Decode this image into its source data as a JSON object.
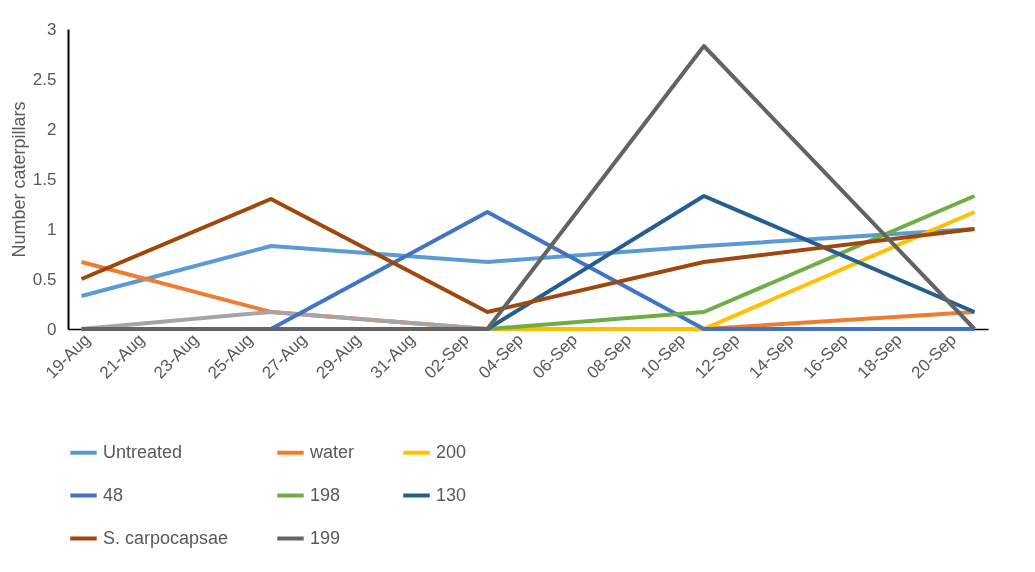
{
  "chart_data": {
    "type": "line",
    "ylabel": "Number caterpillars",
    "ylim": [
      0,
      3
    ],
    "yticks": [
      0,
      0.5,
      1,
      1.5,
      2,
      2.5,
      3
    ],
    "xlim": [
      "--08-18T12:00",
      "--09-21T12:00"
    ],
    "xticks": [
      {
        "value": "--08-19",
        "label": "19-Aug"
      },
      {
        "value": "--08-21",
        "label": "21-Aug"
      },
      {
        "value": "--08-23",
        "label": "23-Aug"
      },
      {
        "value": "--08-25",
        "label": "25-Aug"
      },
      {
        "value": "--08-27",
        "label": "27-Aug"
      },
      {
        "value": "--08-29",
        "label": "29-Aug"
      },
      {
        "value": "--08-31",
        "label": "31-Aug"
      },
      {
        "value": "--09-02",
        "label": "02-Sep"
      },
      {
        "value": "--09-04",
        "label": "04-Sep"
      },
      {
        "value": "--09-06",
        "label": "06-Sep"
      },
      {
        "value": "--09-08",
        "label": "08-Sep"
      },
      {
        "value": "--09-10",
        "label": "10-Sep"
      },
      {
        "value": "--09-12",
        "label": "12-Sep"
      },
      {
        "value": "--09-14",
        "label": "14-Sep"
      },
      {
        "value": "--09-16",
        "label": "16-Sep"
      },
      {
        "value": "--09-18",
        "label": "18-Sep"
      },
      {
        "value": "--09-20",
        "label": "20-Sep"
      }
    ],
    "x": [
      "--08-19",
      "--08-26",
      "--09-03",
      "--09-11",
      "--09-21"
    ],
    "grid": false,
    "legend": "bottom",
    "marker": "none",
    "line_style": "solid",
    "series": [
      {
        "name": "Untreated",
        "color": "#5b9bd5",
        "values": [
          0.33,
          0.83,
          0.67,
          0.83,
          1.0
        ]
      },
      {
        "name": "water",
        "color": "#ed7d31",
        "values": [
          0.67,
          0.17,
          0,
          0,
          0.17
        ]
      },
      {
        "color": "#a5a5a5",
        "values": [
          0,
          0.17,
          0,
          null,
          null
        ]
      },
      {
        "name": "200",
        "color": "#ffc000",
        "values": [
          null,
          null,
          0,
          0,
          1.17
        ]
      },
      {
        "name": "48",
        "color": "#4472c4",
        "values": [
          null,
          0,
          1.17,
          0,
          0
        ]
      },
      {
        "name": "198",
        "color": "#70ad47",
        "values": [
          null,
          null,
          0,
          0.17,
          1.33
        ]
      },
      {
        "name": "130",
        "color": "#255e91",
        "values": [
          null,
          null,
          0,
          1.33,
          0.17
        ]
      },
      {
        "name": "S. carpocapsae",
        "color": "#9e480e",
        "values": [
          0.5,
          1.3,
          0.17,
          0.67,
          1.0
        ]
      },
      {
        "name": "199",
        "color": "#636363",
        "values": [
          0,
          0,
          0,
          2.83,
          0
        ]
      }
    ]
  }
}
